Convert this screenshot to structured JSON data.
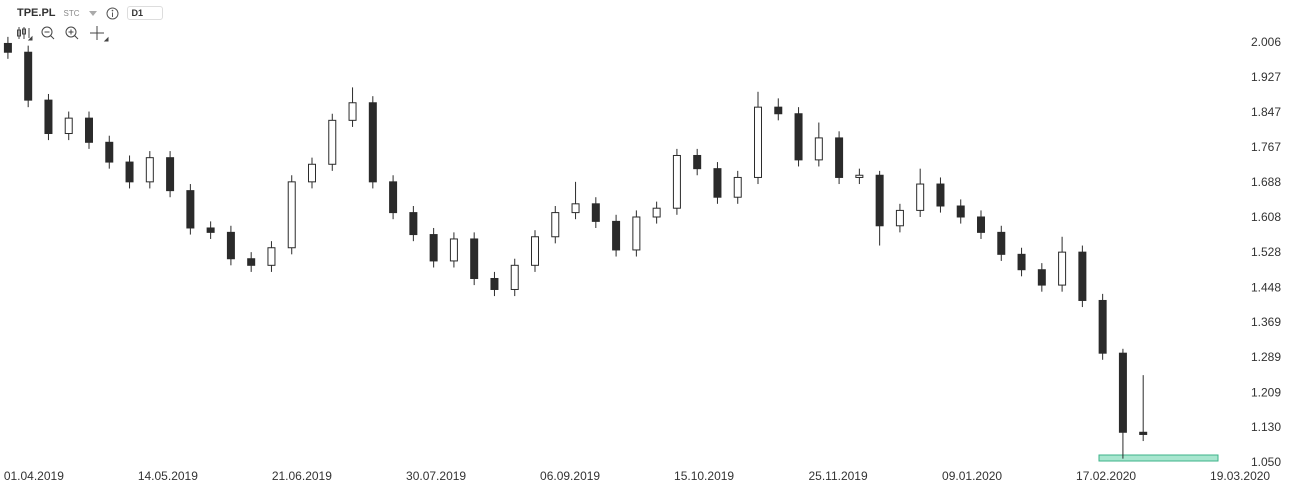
{
  "toolbar": {
    "symbol": "TPE.PL",
    "market": "STC",
    "interval": "D1"
  },
  "chart_data": {
    "type": "candlestick",
    "open": [
      2.005,
      1.985,
      1.876,
      1.8,
      1.835,
      1.78,
      1.735,
      1.69,
      1.745,
      1.67,
      1.585,
      1.575,
      1.515,
      1.5,
      1.54,
      1.69,
      1.73,
      1.83,
      1.87,
      1.69,
      1.62,
      1.57,
      1.51,
      1.56,
      1.47,
      1.445,
      1.5,
      1.565,
      1.62,
      1.64,
      1.6,
      1.535,
      1.61,
      1.63,
      1.75,
      1.72,
      1.655,
      1.7,
      1.86,
      1.845,
      1.74,
      1.79,
      1.7,
      1.705,
      1.59,
      1.625,
      1.685,
      1.635,
      1.61,
      1.575,
      1.525,
      1.49,
      1.455,
      1.53,
      1.42,
      1.3,
      1.12
    ],
    "high": [
      2.02,
      2.0,
      1.89,
      1.85,
      1.85,
      1.795,
      1.75,
      1.76,
      1.76,
      1.685,
      1.6,
      1.59,
      1.53,
      1.555,
      1.705,
      1.745,
      1.845,
      1.905,
      1.885,
      1.705,
      1.635,
      1.585,
      1.575,
      1.575,
      1.485,
      1.515,
      1.58,
      1.635,
      1.69,
      1.655,
      1.615,
      1.625,
      1.645,
      1.765,
      1.765,
      1.735,
      1.715,
      1.895,
      1.88,
      1.86,
      1.825,
      1.805,
      1.72,
      1.715,
      1.64,
      1.72,
      1.7,
      1.65,
      1.625,
      1.59,
      1.54,
      1.505,
      1.565,
      1.545,
      1.435,
      1.31,
      1.25
    ],
    "low": [
      1.97,
      1.86,
      1.785,
      1.785,
      1.765,
      1.72,
      1.675,
      1.675,
      1.655,
      1.57,
      1.56,
      1.5,
      1.485,
      1.485,
      1.525,
      1.675,
      1.715,
      1.815,
      1.675,
      1.605,
      1.555,
      1.495,
      1.495,
      1.455,
      1.43,
      1.43,
      1.485,
      1.55,
      1.605,
      1.585,
      1.52,
      1.52,
      1.595,
      1.615,
      1.705,
      1.64,
      1.64,
      1.685,
      1.83,
      1.725,
      1.725,
      1.685,
      1.685,
      1.545,
      1.575,
      1.61,
      1.62,
      1.595,
      1.56,
      1.51,
      1.475,
      1.44,
      1.44,
      1.405,
      1.285,
      1.06,
      1.1
    ],
    "close": [
      1.985,
      1.876,
      1.8,
      1.835,
      1.78,
      1.735,
      1.69,
      1.745,
      1.67,
      1.585,
      1.575,
      1.515,
      1.5,
      1.54,
      1.69,
      1.73,
      1.83,
      1.87,
      1.69,
      1.62,
      1.57,
      1.51,
      1.56,
      1.47,
      1.445,
      1.5,
      1.565,
      1.62,
      1.64,
      1.6,
      1.535,
      1.61,
      1.63,
      1.75,
      1.72,
      1.655,
      1.7,
      1.86,
      1.845,
      1.74,
      1.79,
      1.7,
      1.705,
      1.59,
      1.625,
      1.685,
      1.635,
      1.61,
      1.575,
      1.525,
      1.49,
      1.455,
      1.53,
      1.42,
      1.3,
      1.12,
      1.115
    ],
    "up_color": "#ffffff",
    "down_color": "#2b2b2b",
    "edge_color": "#2b2b2b",
    "xlim": [
      -0.39,
      61.17
    ],
    "xticks": [
      {
        "value": 1.28,
        "label": "01.04.2019"
      },
      {
        "value": 7.89,
        "label": "14.05.2019"
      },
      {
        "value": 14.5,
        "label": "21.06.2019"
      },
      {
        "value": 21.12,
        "label": "30.07.2019"
      },
      {
        "value": 27.73,
        "label": "06.09.2019"
      },
      {
        "value": 34.34,
        "label": "15.10.2019"
      },
      {
        "value": 40.95,
        "label": "25.11.2019"
      },
      {
        "value": 47.56,
        "label": "09.01.2020"
      },
      {
        "value": 54.17,
        "label": "17.02.2020"
      },
      {
        "value": 60.78,
        "label": "19.03.2020"
      }
    ],
    "ylim": [
      1.0455,
      2.1039
    ],
    "yticks": [
      2.006,
      1.927,
      1.847,
      1.767,
      1.688,
      1.608,
      1.528,
      1.448,
      1.369,
      1.289,
      1.209,
      {
        "value": 1.13,
        "label": "1.130"
      },
      {
        "value": 1.05,
        "label": "1.050"
      }
    ]
  }
}
